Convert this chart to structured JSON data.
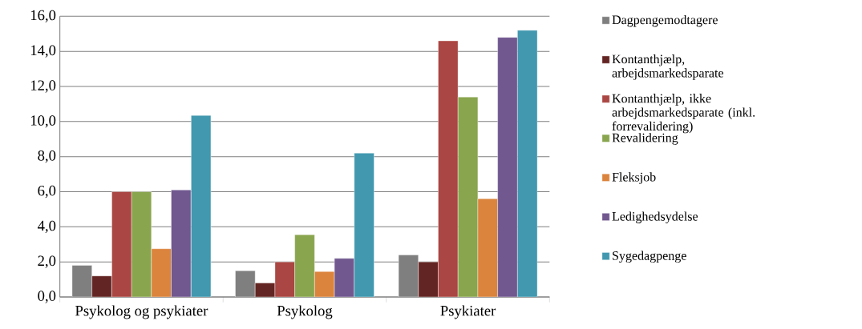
{
  "chart_data": {
    "type": "bar",
    "categories": [
      "Psykolog og psykiater",
      "Psykolog",
      "Psykiater"
    ],
    "series": [
      {
        "name": "Dagpengemodtagere",
        "color": "#7f7f7f",
        "values": [
          1.8,
          1.5,
          2.4
        ]
      },
      {
        "name": "Kontanthjælp, arbejdsmarkedsparate",
        "color": "#632523",
        "values": [
          1.2,
          0.8,
          2.0
        ]
      },
      {
        "name": "Kontanthjælp, ikke arbejdsmarkedsparate (inkl. forrevalidering)",
        "color": "#aa4643",
        "values": [
          6.0,
          2.0,
          14.6
        ]
      },
      {
        "name": "Revalidering",
        "color": "#89a54e",
        "values": [
          6.0,
          3.55,
          11.4
        ]
      },
      {
        "name": "Fleksjob",
        "color": "#db843d",
        "values": [
          2.75,
          1.45,
          5.6
        ]
      },
      {
        "name": "Ledighedsydelse",
        "color": "#71588f",
        "values": [
          6.1,
          2.2,
          14.8
        ]
      },
      {
        "name": "Sygedagpenge",
        "color": "#4198af",
        "values": [
          10.35,
          8.2,
          15.2
        ]
      }
    ],
    "ylim": [
      0,
      16
    ],
    "yticks": [
      {
        "value": 0,
        "label": "0,0"
      },
      {
        "value": 2,
        "label": "2,0"
      },
      {
        "value": 4,
        "label": "4,0"
      },
      {
        "value": 6,
        "label": "6,0"
      },
      {
        "value": 8,
        "label": "8,0"
      },
      {
        "value": 10,
        "label": "10,0"
      },
      {
        "value": 12,
        "label": "12,0"
      },
      {
        "value": 14,
        "label": "14,0"
      },
      {
        "value": 16,
        "label": "16,0"
      }
    ],
    "grid": "y",
    "legend": "right"
  }
}
